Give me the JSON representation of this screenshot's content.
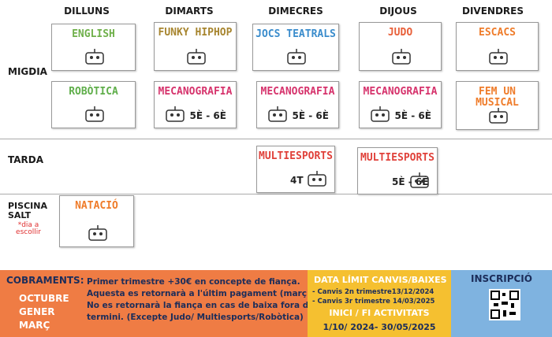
{
  "days": [
    "DILLUNS",
    "DIMARTS",
    "DIMECRES",
    "DIJOUS",
    "DIVENDRES"
  ],
  "migdia": {
    "label": "MIGDIA",
    "cards": [
      {
        "title": "ENGLISH",
        "color": "#6fb04a"
      },
      {
        "title": "FUNKY HIPHOP",
        "color": "#a7852f"
      },
      {
        "title": "JOCS TEATRALS",
        "color": "#3a8ccc"
      },
      {
        "title": "JUDO",
        "color": "#e8603a"
      },
      {
        "title": "ESCACS",
        "color": "#ef7c2a"
      },
      {
        "title": "ROBÒTICA",
        "color": "#5fae4a"
      },
      {
        "title": "MECANOGRAFIA",
        "note": "5È - 6È",
        "color": "#d6336c"
      },
      {
        "title": "MECANOGRAFIA",
        "note": "5È - 6È",
        "color": "#d6336c"
      },
      {
        "title": "MECANOGRAFIA",
        "note": "5È - 6È",
        "color": "#d6336c"
      },
      {
        "title": "FEM UN MUSICAL",
        "color": "#ef7c2a"
      }
    ]
  },
  "tarda": {
    "label": "TARDA",
    "cards": [
      {
        "title": "MULTIESPORTS",
        "note": "4T",
        "color": "#e0413a"
      },
      {
        "title": "MULTIESPORTS",
        "note": "5È - 6È",
        "color": "#e0413a"
      }
    ]
  },
  "piscina": {
    "label": "PISCINA SALT",
    "note": "*dia a escollir",
    "cards": [
      {
        "title": "NATACIÓ",
        "color": "#ef7c2a"
      }
    ]
  },
  "footer": {
    "cobraments": {
      "title": "COBRAMENTS:",
      "months": [
        "OCTUBRE",
        "GENER",
        "MARÇ"
      ],
      "lines": [
        "Primer trimestre +30€ en concepte de fiança.",
        "Aquesta es retornarà a l'últim pagament (març).",
        "No es retornarà la fiança en cas de baixa fora de",
        "termini.  (Excepte Judo/ Multiesports/Robòtica)"
      ]
    },
    "deadline": {
      "title": "DATA LÍMIT CANVIS/BAIXES",
      "items": [
        "- Canvis 2n trimestre13/12/2024",
        "- Canvis 3r trimestre 14/03/2025"
      ]
    },
    "dates": {
      "title": "INICI / FI ACTIVITATS",
      "text": "1/10/ 2024- 30/05/2025"
    },
    "inscripcio": {
      "title": "INSCRIPCIÓ"
    }
  }
}
